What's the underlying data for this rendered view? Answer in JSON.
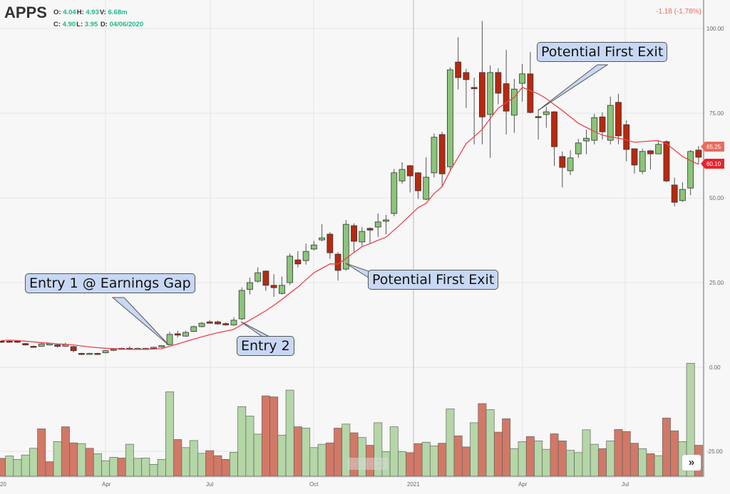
{
  "header": {
    "symbol": "APPS",
    "o_label": "O:",
    "o_value": "4.04",
    "h_label": "H:",
    "h_value": "4.93",
    "v_label": "V:",
    "v_value": "6.68m",
    "c_label": "C:",
    "c_value": "4.90",
    "l_label": "L:",
    "l_value": "3.95",
    "d_label": "D:",
    "d_value": "04/06/2020",
    "change": "-1.18 (-1.78%)"
  },
  "colors": {
    "up": "#8cc47a",
    "down": "#b52a10",
    "vol_up": "#b5d6a7",
    "vol_down": "#d27866",
    "ma": "#f0404a",
    "last_price": "#ec6a5e",
    "ma_label": "#e8242e",
    "ohlc_value": "#1fb88d"
  },
  "annotations": [
    {
      "text": "Entry 1 @ Earnings Gap"
    },
    {
      "text": "Entry 2"
    },
    {
      "text": "Potential First Exit"
    },
    {
      "text": "Potential First Exit"
    }
  ],
  "controls": {
    "zoom_out": "−",
    "zoom_in": "+",
    "reset": "⛶",
    "scroll_right": "»"
  },
  "chart_data": {
    "type": "candlestick",
    "interval": "weekly",
    "price_axis": {
      "ticks": [
        "100.00",
        "75.00",
        "50.00",
        "25.00"
      ],
      "values": [
        100,
        75,
        50,
        25
      ],
      "ylim": [
        0,
        100
      ]
    },
    "volume_axis": {
      "ticks": [
        "0.00",
        "-25.00"
      ],
      "values": [
        0,
        -25
      ]
    },
    "x_ticks": [
      "20",
      "Apr",
      "Jul",
      "Oct",
      "2021",
      "Apr",
      "Jul"
    ],
    "grid": true,
    "price_labels": {
      "last": "65.25",
      "ma": "60.10"
    },
    "candles_ohlc": [
      [
        7.7,
        8.0,
        7.2,
        7.4
      ],
      [
        7.7,
        7.9,
        7.3,
        7.5
      ],
      [
        7.7,
        7.9,
        7.2,
        7.4
      ],
      [
        7.0,
        7.2,
        6.4,
        6.6
      ],
      [
        6.2,
        6.4,
        5.7,
        5.9
      ],
      [
        6.2,
        7.2,
        6.0,
        6.9
      ],
      [
        6.6,
        7.2,
        6.4,
        7.0
      ],
      [
        6.6,
        6.8,
        5.8,
        6.2
      ],
      [
        6.2,
        7.3,
        6.0,
        6.7
      ],
      [
        6.1,
        6.3,
        4.4,
        4.9
      ],
      [
        4.1,
        4.3,
        3.6,
        3.8
      ],
      [
        3.9,
        4.3,
        3.7,
        4.1
      ],
      [
        4.1,
        4.3,
        3.6,
        3.8
      ],
      [
        4.3,
        5.0,
        4.1,
        4.9
      ],
      [
        5.0,
        5.5,
        4.8,
        5.3
      ],
      [
        5.4,
        5.8,
        5.2,
        5.6
      ],
      [
        5.6,
        6.2,
        5.2,
        5.4
      ],
      [
        5.4,
        5.8,
        5.2,
        5.6
      ],
      [
        5.4,
        5.8,
        5.2,
        5.6
      ],
      [
        5.7,
        6.1,
        5.5,
        5.9
      ],
      [
        6.0,
        6.5,
        5.8,
        6.4
      ],
      [
        6.7,
        10.5,
        6.5,
        9.7
      ],
      [
        9.9,
        10.8,
        8.8,
        9.5
      ],
      [
        9.2,
        10.8,
        9.0,
        10.3
      ],
      [
        10.6,
        12.3,
        10.4,
        12.0
      ],
      [
        12.0,
        13.4,
        11.8,
        13.0
      ],
      [
        13.4,
        13.9,
        12.9,
        13.0
      ],
      [
        13.4,
        13.8,
        12.6,
        12.8
      ],
      [
        12.9,
        13.3,
        12.3,
        12.5
      ],
      [
        12.5,
        14.8,
        12.3,
        13.9
      ],
      [
        14.3,
        23.6,
        13.9,
        22.7
      ],
      [
        23.0,
        26.5,
        21.5,
        25.0
      ],
      [
        25.4,
        29.5,
        25.0,
        27.9
      ],
      [
        28.4,
        28.6,
        22.5,
        24.2
      ],
      [
        24.2,
        27.5,
        20.8,
        23.5
      ],
      [
        21.8,
        26.8,
        21.5,
        24.2
      ],
      [
        25.0,
        33.6,
        24.3,
        32.8
      ],
      [
        31.7,
        34.3,
        29.5,
        30.5
      ],
      [
        31.5,
        36.5,
        30.3,
        34.2
      ],
      [
        34.9,
        37.3,
        34.5,
        36.1
      ],
      [
        37.6,
        42.2,
        37.2,
        38.2
      ],
      [
        39.3,
        39.9,
        32.0,
        33.8
      ],
      [
        33.4,
        34.0,
        25.6,
        28.6
      ],
      [
        29.0,
        43.5,
        28.5,
        42.2
      ],
      [
        41.8,
        42.5,
        33.7,
        37.2
      ],
      [
        37.0,
        41.4,
        35.8,
        40.1
      ],
      [
        41.0,
        41.3,
        36.5,
        40.5
      ],
      [
        41.4,
        45.4,
        38.5,
        42.9
      ],
      [
        43.1,
        45.0,
        39.3,
        43.5
      ],
      [
        45.4,
        58.5,
        44.6,
        57.4
      ],
      [
        55.0,
        60.5,
        54.2,
        58.4
      ],
      [
        59.5,
        59.7,
        51.6,
        56.5
      ],
      [
        57.4,
        57.6,
        49.7,
        52.1
      ],
      [
        49.6,
        62.0,
        49.3,
        56.1
      ],
      [
        57.4,
        69.0,
        56.0,
        67.9
      ],
      [
        68.7,
        69.5,
        53.5,
        57.1
      ],
      [
        59.2,
        88.5,
        58.0,
        87.8
      ],
      [
        90.1,
        97.4,
        82.0,
        85.5
      ],
      [
        87.0,
        88.1,
        76.5,
        84.9
      ],
      [
        82.6,
        85.5,
        65.8,
        82.2
      ],
      [
        87.0,
        102.2,
        65.8,
        73.9
      ],
      [
        74.6,
        89.1,
        61.8,
        87.0
      ],
      [
        87.0,
        88.3,
        77.6,
        80.9
      ],
      [
        83.7,
        93.7,
        68.7,
        75.6
      ],
      [
        74.4,
        85.1,
        69.2,
        82.1
      ],
      [
        83.8,
        89.5,
        78.4,
        86.6
      ],
      [
        86.6,
        93.1,
        75.0,
        75.2
      ],
      [
        74.0,
        76.2,
        67.2,
        73.8
      ],
      [
        74.6,
        76.9,
        70.7,
        75.4
      ],
      [
        75.4,
        75.6,
        59.4,
        65.1
      ],
      [
        62.2,
        63.7,
        53.1,
        59.0
      ],
      [
        58.0,
        64.1,
        56.7,
        61.8
      ],
      [
        63.0,
        67.4,
        61.8,
        66.2
      ],
      [
        66.8,
        70.1,
        62.9,
        67.6
      ],
      [
        67.0,
        74.8,
        65.8,
        73.7
      ],
      [
        73.9,
        75.2,
        67.2,
        69.5
      ],
      [
        67.0,
        79.9,
        65.8,
        77.3
      ],
      [
        78.2,
        80.7,
        65.8,
        68.3
      ],
      [
        71.6,
        72.9,
        60.8,
        64.3
      ],
      [
        64.5,
        64.6,
        57.2,
        59.7
      ],
      [
        57.8,
        64.5,
        57.0,
        63.7
      ],
      [
        63.9,
        64.1,
        58.4,
        63.0
      ],
      [
        63.0,
        66.9,
        62.9,
        65.8
      ],
      [
        66.6,
        67.0,
        54.6,
        55.0
      ],
      [
        53.8,
        56.0,
        47.5,
        48.7
      ],
      [
        49.2,
        54.6,
        48.8,
        52.5
      ],
      [
        52.9,
        64.1,
        50.8,
        63.7
      ],
      [
        64.1,
        65.3,
        59.9,
        62.0
      ]
    ],
    "moving_average": [
      7.9,
      8.0,
      7.9,
      7.7,
      7.5,
      7.3,
      7.1,
      6.9,
      6.8,
      6.6,
      6.3,
      6.0,
      5.8,
      5.6,
      5.5,
      5.4,
      5.3,
      5.3,
      5.3,
      5.4,
      5.5,
      6.2,
      6.9,
      7.6,
      8.3,
      9.0,
      9.6,
      10.2,
      10.7,
      11.2,
      12.6,
      13.9,
      15.3,
      16.7,
      18.3,
      20.0,
      21.9,
      23.7,
      25.8,
      27.9,
      29.2,
      30.5,
      30.5,
      32.1,
      33.9,
      35.6,
      36.5,
      37.5,
      38.4,
      40.5,
      42.6,
      44.9,
      47.1,
      48.4,
      51.3,
      53.3,
      58.0,
      62.0,
      66.0,
      68.1,
      70.2,
      73.4,
      76.5,
      78.1,
      79.7,
      82.6,
      81.7,
      80.7,
      79.3,
      77.5,
      75.8,
      73.9,
      72.0,
      70.8,
      69.6,
      68.5,
      68.0,
      67.6,
      67.1,
      66.4,
      66.6,
      66.8,
      66.9,
      66.0,
      64.1,
      62.2,
      61.0,
      59.9
    ],
    "volume": [
      -27.1,
      -26.4,
      -27.4,
      -26.1,
      -24.1,
      -18.3,
      -28.1,
      -22.1,
      -17.7,
      -22.5,
      -22.7,
      -24.1,
      -25.7,
      -27.8,
      -26.8,
      -27.0,
      -22.9,
      -27.1,
      -27.0,
      -28.9,
      -27.4,
      -7.3,
      -21.5,
      -23.9,
      -21.8,
      -25.6,
      -24.8,
      -26.3,
      -27.4,
      -25.3,
      -11.7,
      -14.5,
      -19.9,
      -8.5,
      -8.8,
      -20.2,
      -6.8,
      -17.7,
      -18.1,
      -23.9,
      -22.9,
      -22.5,
      -18.1,
      -16.9,
      -19.5,
      -20.9,
      -23.2,
      -16.5,
      -25.1,
      -17.7,
      -25.1,
      -25.4,
      -22.7,
      -22.3,
      -23.4,
      -22.6,
      -12.4,
      -20.4,
      -23.7,
      -16.5,
      -10.8,
      -12.6,
      -19.3,
      -15.3,
      -24.2,
      -22.1,
      -20.6,
      -21.9,
      -24.4,
      -19.8,
      -21.9,
      -24.7,
      -25.4,
      -18.6,
      -22.9,
      -24.2,
      -21.9,
      -18.5,
      -19.1,
      -22.6,
      -24.2,
      -25.7,
      -26.3,
      -15.1,
      -18.9,
      -22.1,
      1.2,
      -23.2
    ],
    "volume_direction": "rggggrrgrrgrgggrggggg grgggrrrggggrrggrgggrrgrgrggggrrggrgrrgrgrrggrggrrggggrgrrrgrgrrggr"
  }
}
